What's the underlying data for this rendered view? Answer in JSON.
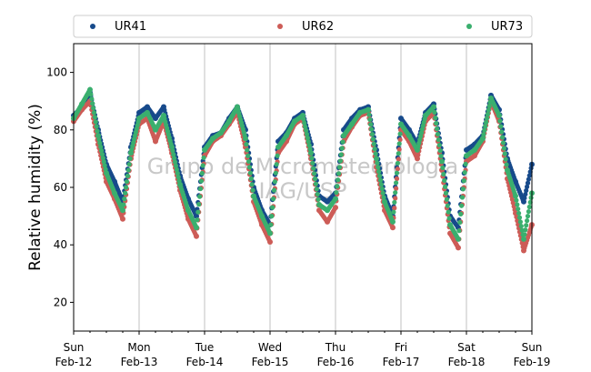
{
  "chart_data": {
    "type": "scatter",
    "ylabel": "Relative humidity (%)",
    "ylim": [
      10,
      110
    ],
    "yticks": [
      20,
      40,
      60,
      80,
      100
    ],
    "xlim": [
      "2023-02-12 00:00",
      "2023-02-19 00:00"
    ],
    "xtick_labels": [
      {
        "day": "Sun",
        "date": "Feb-12"
      },
      {
        "day": "Mon",
        "date": "Feb-13"
      },
      {
        "day": "Tue",
        "date": "Feb-14"
      },
      {
        "day": "Wed",
        "date": "Feb-15"
      },
      {
        "day": "Thu",
        "date": "Feb-16"
      },
      {
        "day": "Fri",
        "date": "Feb-17"
      },
      {
        "day": "Sat",
        "date": "Feb-18"
      },
      {
        "day": "Sun",
        "date": "Feb-19"
      }
    ],
    "grid": "vertical at day boundaries",
    "legend": {
      "placement": "top",
      "columns": 3
    },
    "watermark": {
      "line1": "Grupo de Micrometeorologia",
      "line2": "IAG/USP"
    },
    "series": [
      {
        "name": "UR41",
        "color": "#174a8b",
        "x_hours": [
          0,
          3,
          6,
          9,
          12,
          15,
          18,
          21,
          24,
          27,
          30,
          33,
          36,
          39,
          42,
          45,
          48,
          51,
          54,
          57,
          60,
          63,
          66,
          69,
          72,
          75,
          78,
          81,
          84,
          87,
          90,
          93,
          96,
          99,
          102,
          105,
          108,
          111,
          114,
          117,
          120,
          123,
          126,
          129,
          132,
          135,
          138,
          141,
          144,
          147,
          150,
          153,
          156,
          159,
          162,
          165,
          168
        ],
        "values": [
          85,
          88,
          93,
          80,
          68,
          62,
          55,
          74,
          86,
          88,
          84,
          88,
          77,
          64,
          56,
          50,
          74,
          78,
          79,
          84,
          88,
          80,
          60,
          52,
          47,
          76,
          79,
          84,
          86,
          75,
          57,
          55,
          58,
          80,
          84,
          87,
          88,
          73,
          57,
          50,
          84,
          80,
          75,
          86,
          89,
          72,
          50,
          46,
          73,
          75,
          78,
          92,
          87,
          70,
          62,
          55,
          68
        ]
      },
      {
        "name": "UR62",
        "color": "#cd5c57",
        "x_hours": [
          0,
          3,
          6,
          9,
          12,
          15,
          18,
          21,
          24,
          27,
          30,
          33,
          36,
          39,
          42,
          45,
          48,
          51,
          54,
          57,
          60,
          63,
          66,
          69,
          72,
          75,
          78,
          81,
          84,
          87,
          90,
          93,
          96,
          99,
          102,
          105,
          108,
          111,
          114,
          117,
          120,
          123,
          126,
          129,
          132,
          135,
          138,
          141,
          144,
          147,
          150,
          153,
          156,
          159,
          162,
          165,
          168
        ],
        "values": [
          83,
          87,
          90,
          75,
          62,
          56,
          49,
          70,
          82,
          84,
          76,
          83,
          72,
          59,
          49,
          43,
          71,
          76,
          78,
          82,
          86,
          74,
          55,
          47,
          41,
          72,
          76,
          82,
          84,
          70,
          52,
          48,
          53,
          76,
          81,
          85,
          86,
          67,
          52,
          46,
          80,
          76,
          70,
          83,
          86,
          66,
          44,
          39,
          69,
          71,
          76,
          90,
          83,
          63,
          51,
          38,
          47
        ]
      },
      {
        "name": "UR73",
        "color": "#3aaf6e",
        "x_hours": [
          0,
          3,
          6,
          9,
          12,
          15,
          18,
          21,
          24,
          27,
          30,
          33,
          36,
          39,
          42,
          45,
          48,
          51,
          54,
          57,
          60,
          63,
          66,
          69,
          72,
          75,
          78,
          81,
          84,
          87,
          90,
          93,
          96,
          99,
          102,
          105,
          108,
          111,
          114,
          117,
          120,
          123,
          126,
          129,
          132,
          135,
          138,
          141,
          144,
          147,
          150,
          153,
          156,
          159,
          162,
          165,
          168
        ],
        "values": [
          84,
          89,
          94,
          78,
          65,
          58,
          52,
          72,
          84,
          86,
          80,
          85,
          74,
          61,
          52,
          46,
          73,
          77,
          79,
          83,
          88,
          77,
          57,
          50,
          44,
          74,
          78,
          83,
          85,
          72,
          54,
          52,
          56,
          78,
          82,
          86,
          87,
          70,
          55,
          48,
          82,
          78,
          73,
          85,
          88,
          69,
          47,
          42,
          71,
          73,
          77,
          91,
          85,
          66,
          57,
          42,
          58
        ]
      }
    ]
  }
}
